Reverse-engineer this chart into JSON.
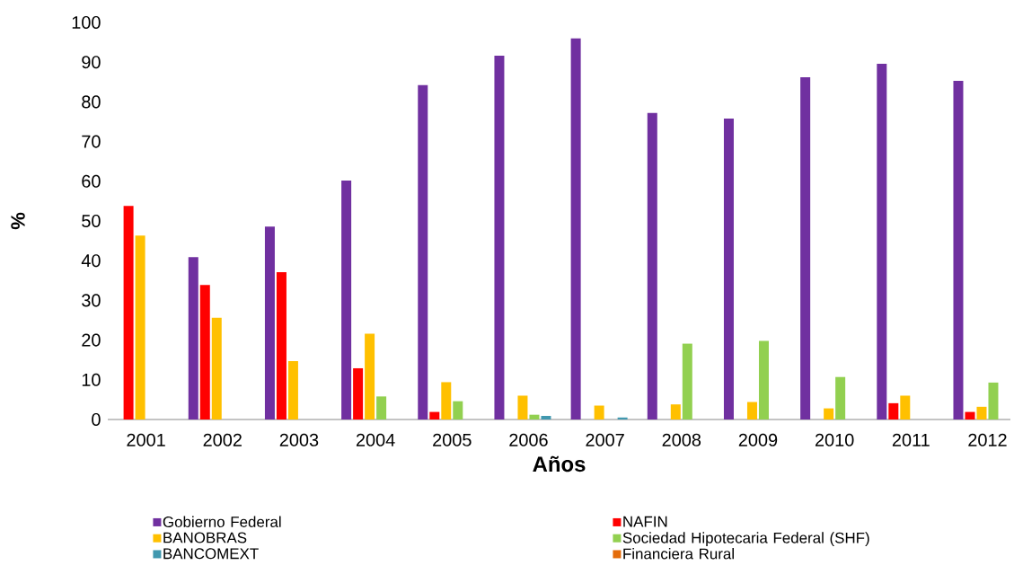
{
  "chart_data": {
    "type": "bar",
    "xlabel": "Años",
    "ylabel": "%",
    "legend": "bottom",
    "categories": [
      "2001",
      "2002",
      "2003",
      "2004",
      "2005",
      "2006",
      "2007",
      "2008",
      "2009",
      "2010",
      "2011",
      "2012"
    ],
    "ylim": [
      0,
      100
    ],
    "yticks": [
      0,
      10,
      20,
      30,
      40,
      50,
      60,
      70,
      80,
      90,
      100
    ],
    "series": [
      {
        "name": "Gobierno Federal",
        "color": "#7030a0",
        "values": [
          null,
          40.9,
          48.6,
          60.2,
          84.2,
          91.6,
          96.0,
          77.2,
          75.8,
          86.2,
          89.6,
          85.3
        ]
      },
      {
        "name": "NAFIN",
        "color": "#ff0000",
        "values": [
          53.8,
          33.9,
          37.1,
          12.9,
          1.9,
          null,
          null,
          null,
          null,
          null,
          4.1,
          1.9
        ]
      },
      {
        "name": "BANOBRAS",
        "color": "#ffc000",
        "values": [
          46.3,
          25.6,
          14.7,
          21.6,
          9.4,
          6.0,
          3.5,
          3.8,
          4.4,
          2.8,
          6.0,
          3.2
        ]
      },
      {
        "name": "Sociedad Hipotecaria Federal (SHF)",
        "color": "#92d050",
        "values": [
          null,
          null,
          null,
          5.8,
          4.6,
          1.2,
          null,
          19.1,
          19.8,
          10.7,
          null,
          9.3
        ]
      },
      {
        "name": "BANCOMEXT",
        "color": "#4198af",
        "values": [
          null,
          null,
          null,
          null,
          null,
          0.9,
          0.5,
          null,
          null,
          null,
          null,
          null
        ]
      },
      {
        "name": "Financiera Rural",
        "color": "#e46c0a",
        "values": [
          null,
          null,
          null,
          null,
          null,
          null,
          null,
          null,
          null,
          null,
          null,
          null
        ]
      }
    ]
  }
}
